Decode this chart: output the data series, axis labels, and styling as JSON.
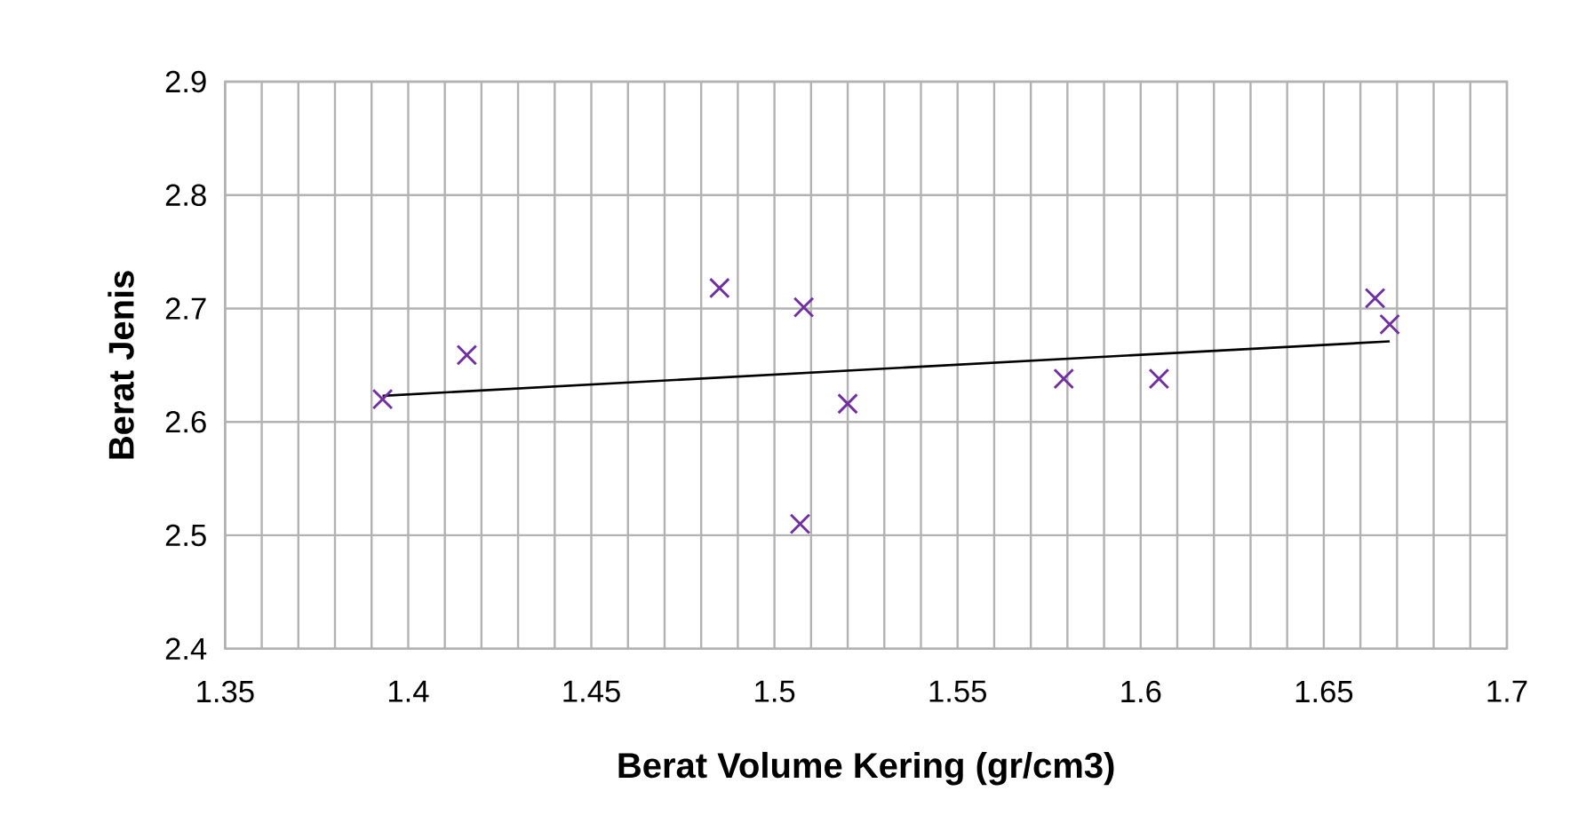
{
  "chart_data": {
    "type": "scatter",
    "xlabel": "Berat Volume Kering (gr/cm3)",
    "ylabel": "Berat Jenis",
    "series": [
      {
        "color": "#7030a0",
        "marker": "cross",
        "x": [
          1.393,
          1.416,
          1.485,
          1.508,
          1.52,
          1.507,
          1.579,
          1.605,
          1.664,
          1.668
        ],
        "values": [
          2.62,
          2.659,
          2.718,
          2.701,
          2.616,
          2.51,
          2.638,
          2.638,
          2.709,
          2.686
        ]
      },
      {
        "type": "line",
        "color": "#000000",
        "marker": "none",
        "x": [
          1.393,
          1.668
        ],
        "values": [
          2.623,
          2.671
        ]
      }
    ],
    "xlim": [
      1.35,
      1.7
    ],
    "ylim": [
      2.4,
      2.9
    ],
    "xticks": [
      1.35,
      1.4,
      1.45,
      1.5,
      1.55,
      1.6,
      1.65,
      1.7
    ],
    "yticks": [
      2.4,
      2.5,
      2.6,
      2.7,
      2.8,
      2.9
    ],
    "grid": true
  }
}
